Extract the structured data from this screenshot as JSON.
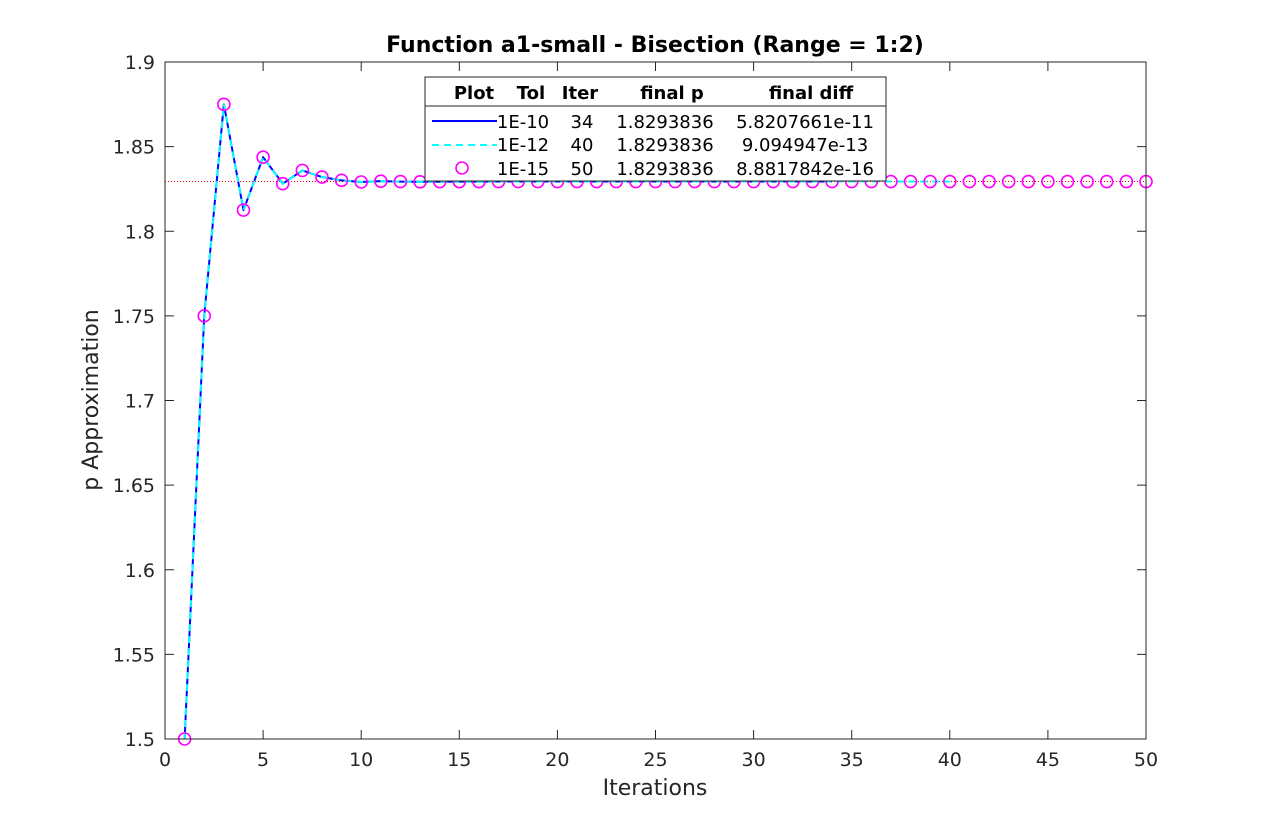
{
  "chart_data": {
    "type": "line",
    "title": "Function a1-small - Bisection (Range = 1:2)",
    "xlabel": "Iterations",
    "ylabel": "p Approximation",
    "xlim": [
      0,
      50
    ],
    "ylim": [
      1.5,
      1.9
    ],
    "xticks": [
      "0",
      "5",
      "10",
      "15",
      "20",
      "25",
      "30",
      "35",
      "40",
      "45",
      "50"
    ],
    "yticks": [
      "1.5",
      "1.55",
      "1.6",
      "1.65",
      "1.7",
      "1.75",
      "1.8",
      "1.85",
      "1.9"
    ],
    "grid": false,
    "legend_position": "top-center",
    "reference_line": {
      "y": 1.8293836,
      "color": "#ff0000",
      "style": "dotted"
    },
    "legend": {
      "headers": [
        "Plot",
        "Tol",
        "Iter",
        "final p",
        "final diff"
      ],
      "rows": [
        {
          "tol": "1E-10",
          "iter": "34",
          "final_p": "1.8293836",
          "final_diff": "5.8207661e-11"
        },
        {
          "tol": "1E-12",
          "iter": "40",
          "final_p": "1.8293836",
          "final_diff": "9.094947e-13"
        },
        {
          "tol": "1E-15",
          "iter": "50",
          "final_p": "1.8293836",
          "final_diff": "8.8817842e-16"
        }
      ]
    },
    "series": [
      {
        "style": "solid",
        "color": "#0000ff",
        "marker": "none",
        "n": 34
      },
      {
        "style": "dashed",
        "color": "#00ffff",
        "marker": "none",
        "n": 40
      },
      {
        "style": "none",
        "color": "#ff00ff",
        "marker": "circle",
        "n": 50
      }
    ],
    "iterates": [
      1.5,
      1.75,
      1.875,
      1.8125,
      1.84375,
      1.828125,
      1.8359375,
      1.83203125,
      1.830078125,
      1.8291015625,
      1.82958984375,
      1.829345703125,
      1.8292236328125,
      1.82928466796875,
      1.829315185546875,
      1.8293,
      1.82938,
      1.82938,
      1.82938,
      1.82938,
      1.82938,
      1.82938,
      1.82938,
      1.82938,
      1.82938,
      1.82938,
      1.82938,
      1.82938,
      1.82938,
      1.82938,
      1.82938,
      1.82938,
      1.82938,
      1.82938,
      1.82938,
      1.82938,
      1.82938,
      1.82938,
      1.82938,
      1.82938,
      1.82938,
      1.82938,
      1.82938,
      1.82938,
      1.82938,
      1.82938,
      1.82938,
      1.82938,
      1.82938,
      1.82938
    ]
  }
}
